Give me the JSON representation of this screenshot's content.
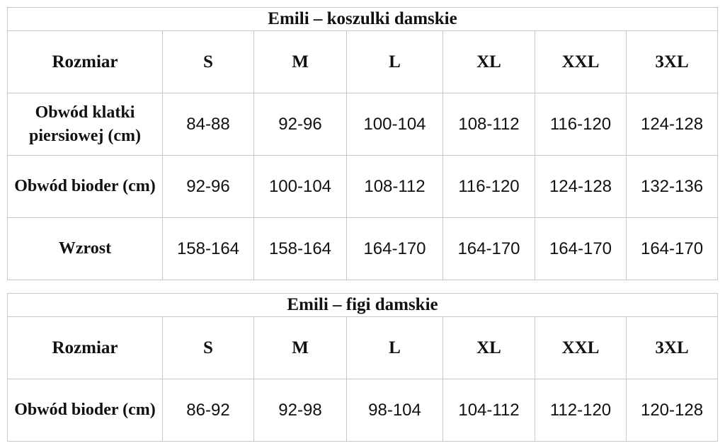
{
  "tables": [
    {
      "title": "Emili – koszulki damskie",
      "header": {
        "label": "Rozmiar",
        "sizes": [
          "S",
          "M",
          "L",
          "XL",
          "XXL",
          "3XL"
        ]
      },
      "rows": [
        {
          "label": "Obwód klatki piersiowej (cm)",
          "values": [
            "84-88",
            "92-96",
            "100-104",
            "108-112",
            "116-120",
            "124-128"
          ]
        },
        {
          "label": "Obwód bioder (cm)",
          "values": [
            "92-96",
            "100-104",
            "108-112",
            "116-120",
            "124-128",
            "132-136"
          ]
        },
        {
          "label": "Wzrost",
          "values": [
            "158-164",
            "158-164",
            "164-170",
            "164-170",
            "164-170",
            "164-170"
          ]
        }
      ]
    },
    {
      "title": "Emili – figi damskie",
      "header": {
        "label": "Rozmiar",
        "sizes": [
          "S",
          "M",
          "L",
          "XL",
          "XXL",
          "3XL"
        ]
      },
      "rows": [
        {
          "label": "Obwód bioder (cm)",
          "values": [
            "86-92",
            "92-98",
            "98-104",
            "104-112",
            "112-120",
            "120-128"
          ]
        }
      ]
    }
  ]
}
